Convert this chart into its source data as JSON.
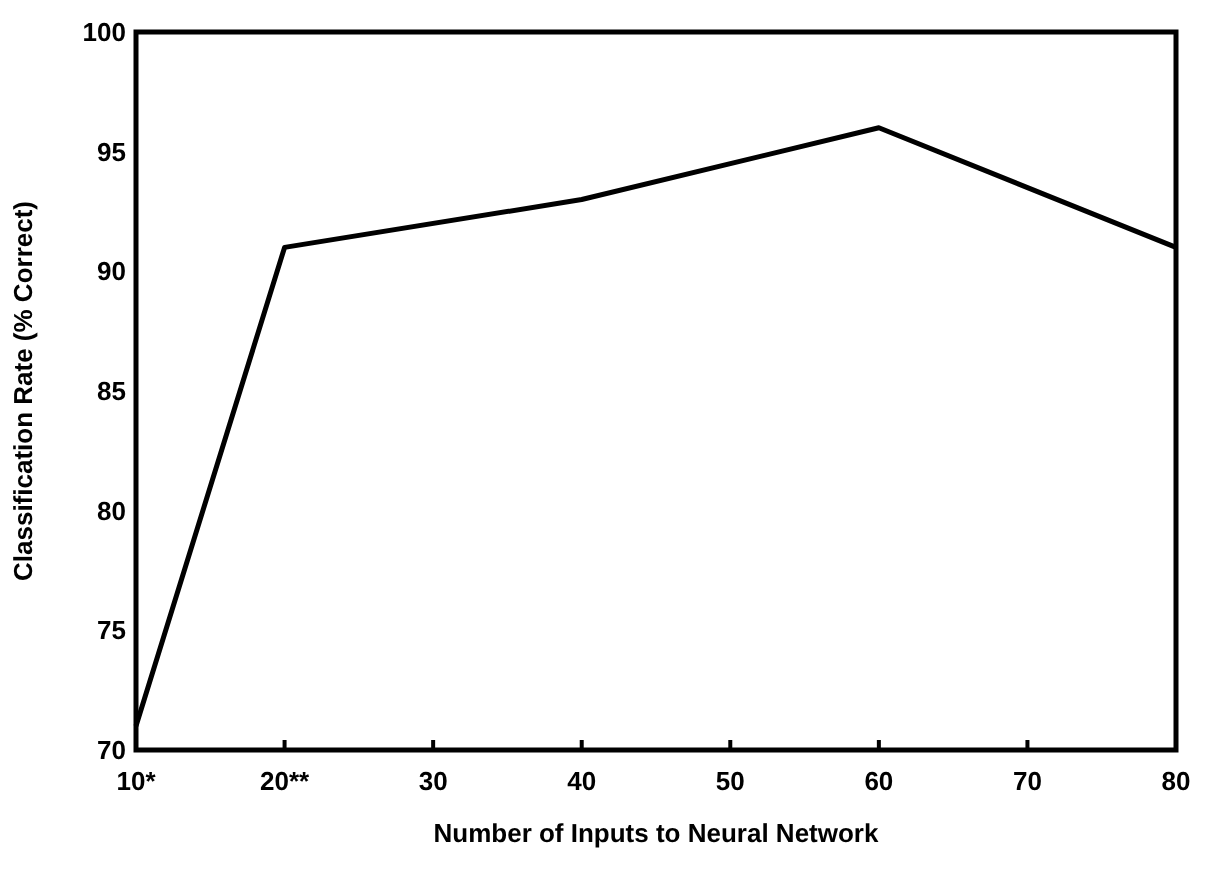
{
  "chart_data": {
    "type": "line",
    "xlabel": "Number of Inputs to Neural Network",
    "ylabel": "Classification Rate (% Correct)",
    "x": [
      10,
      20,
      40,
      60,
      80
    ],
    "series": [
      {
        "color": "#000000",
        "values": [
          71,
          91,
          93,
          96,
          91
        ]
      }
    ],
    "xlim": [
      10,
      80
    ],
    "xticks": [
      {
        "value": 10,
        "label": "10*"
      },
      {
        "value": 20,
        "label": "20**"
      },
      30,
      40,
      50,
      60,
      70,
      80
    ],
    "ylim": [
      70,
      100
    ],
    "yticks": [
      70,
      75,
      80,
      85,
      90,
      95,
      100
    ],
    "grid": false,
    "marker": "none",
    "line_style": "solid"
  }
}
